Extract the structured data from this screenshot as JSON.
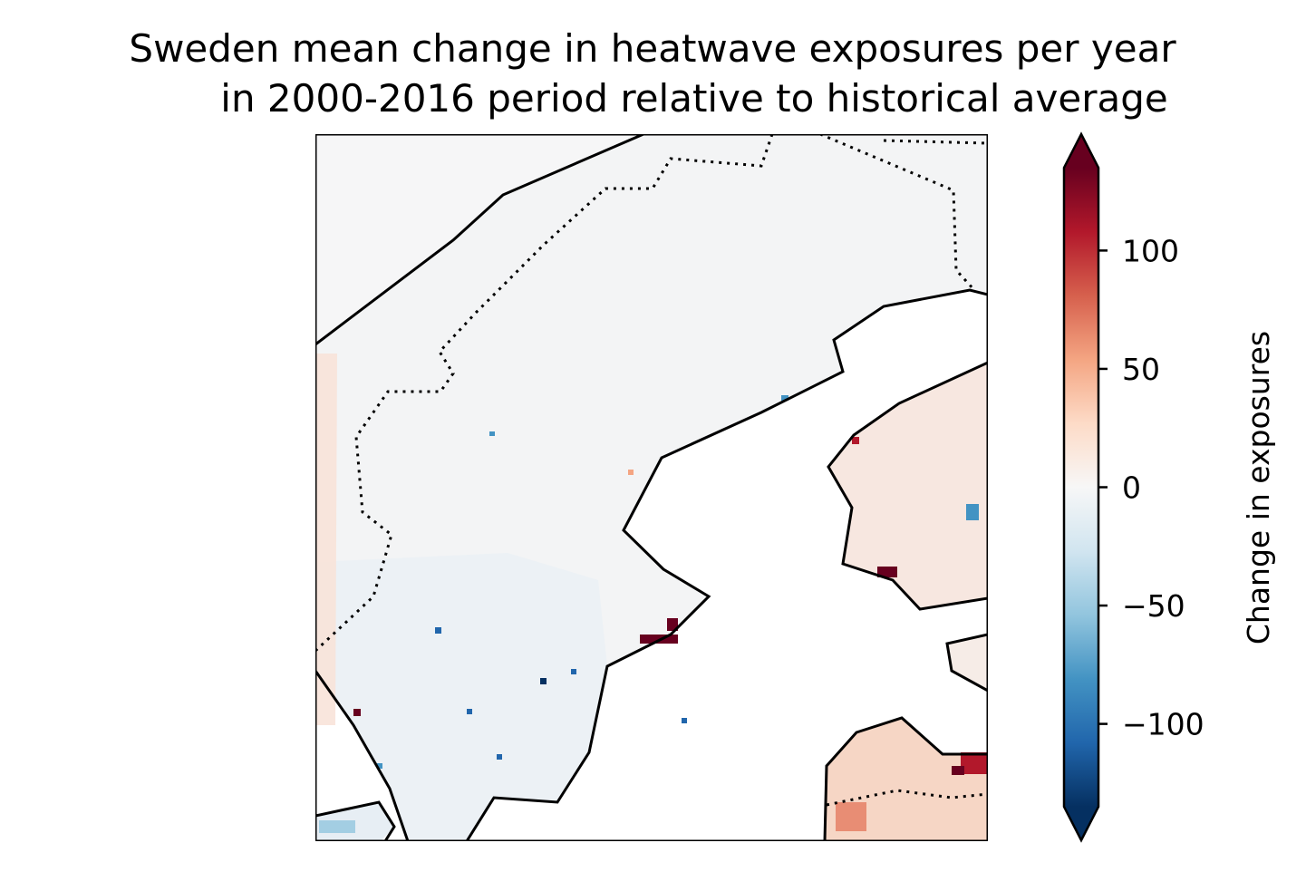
{
  "title": {
    "line1": "Sweden mean change in heatwave exposures per year",
    "line2": "in 2000-2016 period relative to historical average"
  },
  "colorbar": {
    "label": "Change in exposures",
    "colormap": "RdBu_r",
    "range": [
      -135,
      135
    ],
    "extend": "both",
    "ticks": [
      {
        "value": 100,
        "label": "100"
      },
      {
        "value": 50,
        "label": "50"
      },
      {
        "value": 0,
        "label": "0"
      },
      {
        "value": -50,
        "label": "−50"
      },
      {
        "value": -100,
        "label": "−100"
      }
    ],
    "colors": [
      "#053061",
      "#2166ac",
      "#4393c3",
      "#92c5de",
      "#d1e5f0",
      "#f7f7f7",
      "#fddbc7",
      "#f4a582",
      "#d6604d",
      "#b2182b",
      "#67001f"
    ]
  },
  "map": {
    "land_color": "#f2f3f4",
    "sea_color": "#ffffff",
    "borders": "solid coastlines, dotted national borders"
  }
}
